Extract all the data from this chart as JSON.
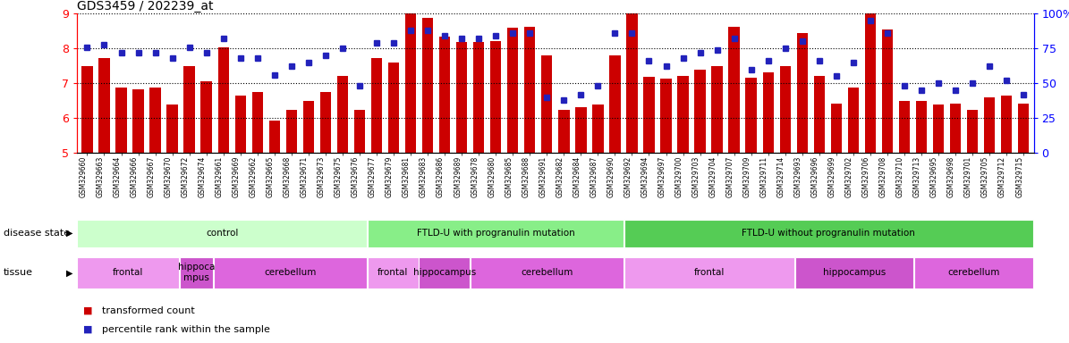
{
  "title": "GDS3459 / 202239_at",
  "samples": [
    "GSM329660",
    "GSM329663",
    "GSM329664",
    "GSM329666",
    "GSM329667",
    "GSM329670",
    "GSM329672",
    "GSM329674",
    "GSM329661",
    "GSM329669",
    "GSM329662",
    "GSM329665",
    "GSM329668",
    "GSM329671",
    "GSM329673",
    "GSM329675",
    "GSM329676",
    "GSM329677",
    "GSM329679",
    "GSM329681",
    "GSM329683",
    "GSM329686",
    "GSM329689",
    "GSM329678",
    "GSM329680",
    "GSM329685",
    "GSM329688",
    "GSM329691",
    "GSM329682",
    "GSM329684",
    "GSM329687",
    "GSM329690",
    "GSM329692",
    "GSM329694",
    "GSM329697",
    "GSM329700",
    "GSM329703",
    "GSM329704",
    "GSM329707",
    "GSM329709",
    "GSM329711",
    "GSM329714",
    "GSM329693",
    "GSM329696",
    "GSM329699",
    "GSM329702",
    "GSM329706",
    "GSM329708",
    "GSM329710",
    "GSM329713",
    "GSM329695",
    "GSM329698",
    "GSM329701",
    "GSM329705",
    "GSM329712",
    "GSM329715"
  ],
  "bar_values": [
    7.48,
    7.72,
    6.88,
    6.82,
    6.88,
    6.38,
    7.48,
    7.05,
    8.02,
    6.65,
    6.75,
    5.92,
    6.22,
    6.5,
    6.75,
    7.22,
    6.22,
    7.72,
    7.6,
    9.0,
    8.88,
    8.35,
    8.18,
    8.18,
    8.2,
    8.6,
    8.62,
    7.8,
    6.22,
    6.3,
    6.38,
    7.8,
    9.35,
    7.18,
    7.12,
    7.22,
    7.38,
    7.5,
    8.62,
    7.15,
    7.3,
    7.48,
    8.45,
    7.2,
    6.42,
    6.88,
    9.52,
    8.55,
    6.5,
    6.5,
    6.38,
    6.42,
    6.22,
    6.6,
    6.65,
    6.42
  ],
  "dot_values": [
    76,
    78,
    72,
    72,
    72,
    68,
    76,
    72,
    82,
    68,
    68,
    56,
    62,
    65,
    70,
    75,
    48,
    79,
    79,
    88,
    88,
    84,
    82,
    82,
    84,
    86,
    86,
    40,
    38,
    42,
    48,
    86,
    86,
    66,
    62,
    68,
    72,
    74,
    82,
    60,
    66,
    75,
    80,
    66,
    55,
    65,
    95,
    86,
    48,
    45,
    50,
    45,
    50,
    62,
    52,
    42
  ],
  "ymin": 5,
  "ymax": 9,
  "yticks_left": [
    5,
    6,
    7,
    8,
    9
  ],
  "yticks_right": [
    0,
    25,
    50,
    75,
    100
  ],
  "bar_color": "#cc0000",
  "dot_color": "#2222bb",
  "disease_groups": [
    {
      "label": "control",
      "start": 0,
      "end": 17,
      "color": "#ccffcc"
    },
    {
      "label": "FTLD-U with progranulin mutation",
      "start": 17,
      "end": 32,
      "color": "#88ee88"
    },
    {
      "label": "FTLD-U without progranulin mutation",
      "start": 32,
      "end": 56,
      "color": "#55cc55"
    }
  ],
  "tissue_groups": [
    {
      "label": "frontal",
      "start": 0,
      "end": 6,
      "color": "#ee99ee"
    },
    {
      "label": "hippoca\nmpus",
      "start": 6,
      "end": 8,
      "color": "#cc55cc"
    },
    {
      "label": "cerebellum",
      "start": 8,
      "end": 17,
      "color": "#dd66dd"
    },
    {
      "label": "frontal",
      "start": 17,
      "end": 20,
      "color": "#ee99ee"
    },
    {
      "label": "hippocampus",
      "start": 20,
      "end": 23,
      "color": "#cc55cc"
    },
    {
      "label": "cerebellum",
      "start": 23,
      "end": 32,
      "color": "#dd66dd"
    },
    {
      "label": "frontal",
      "start": 32,
      "end": 42,
      "color": "#ee99ee"
    },
    {
      "label": "hippocampus",
      "start": 42,
      "end": 49,
      "color": "#cc55cc"
    },
    {
      "label": "cerebellum",
      "start": 49,
      "end": 56,
      "color": "#dd66dd"
    }
  ]
}
